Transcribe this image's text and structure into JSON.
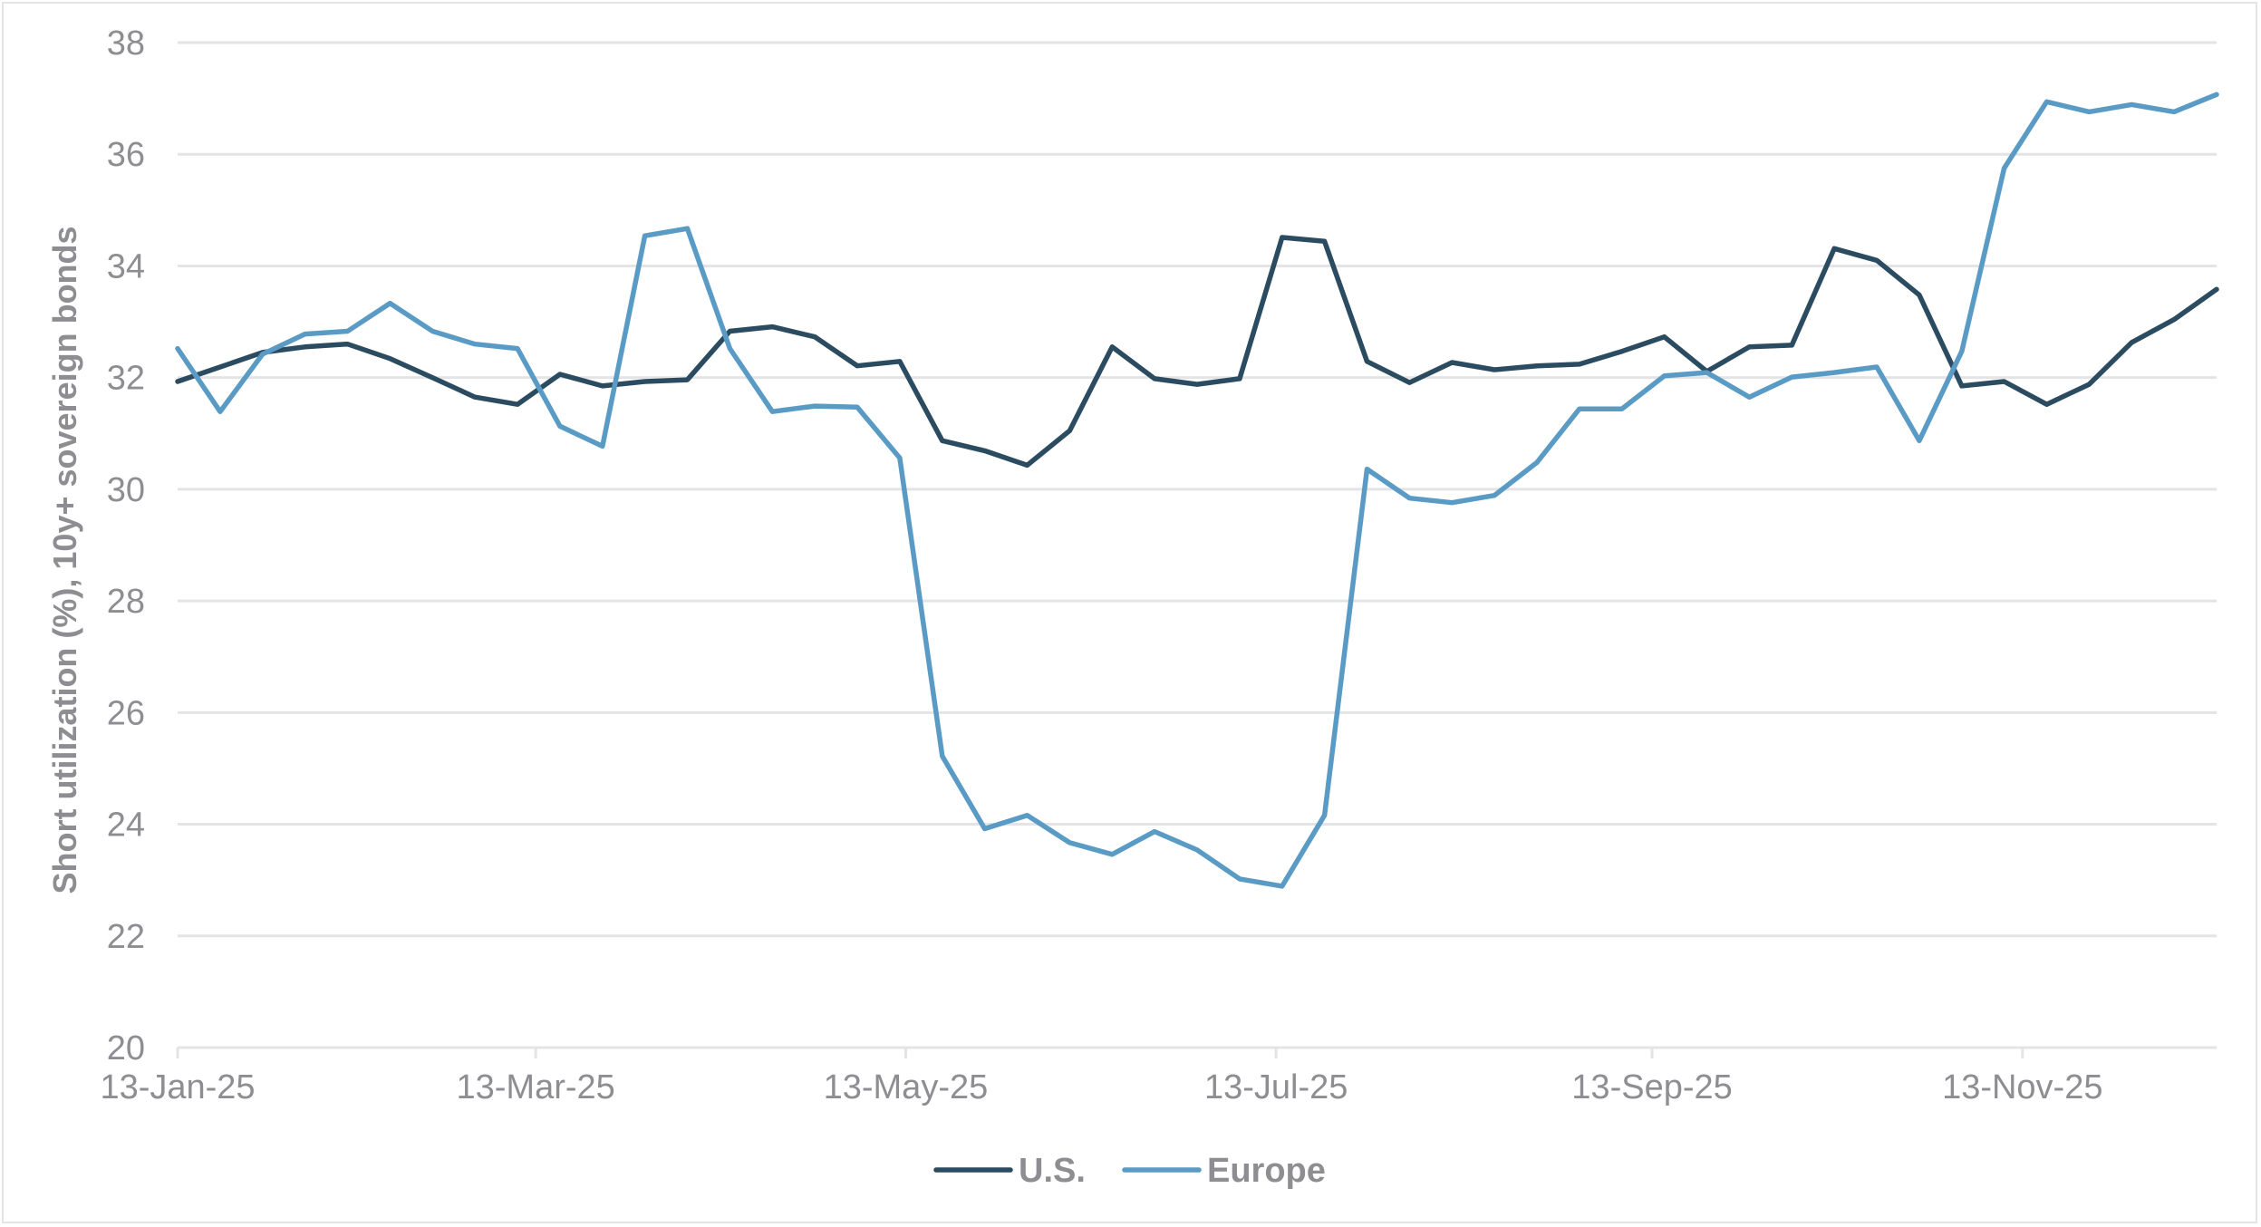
{
  "chart_data": {
    "type": "line",
    "title": "",
    "xlabel": "",
    "ylabel": "Short utilization (%), 10y+ sovereign bonds",
    "ylim": [
      20,
      38
    ],
    "yticks": [
      20,
      22,
      24,
      26,
      28,
      30,
      32,
      34,
      36,
      38
    ],
    "xtick_labels": [
      "13-Jan-25",
      "13-Mar-25",
      "13-May-25",
      "13-Jul-25",
      "13-Sep-25",
      "13-Nov-25"
    ],
    "xtick_indices": [
      0,
      8.43,
      17.14,
      25.86,
      34.71,
      43.43
    ],
    "grid": true,
    "legend_position": "bottom",
    "x_points": 49,
    "x_frequency": "weekly, starting 13-Jan-25",
    "series": [
      {
        "name": "U.S.",
        "color": "#2b4b60",
        "values": [
          31.93,
          32.19,
          32.45,
          32.55,
          32.6,
          32.34,
          32.0,
          31.65,
          31.52,
          32.06,
          31.85,
          31.93,
          31.96,
          32.83,
          32.91,
          32.73,
          32.21,
          32.29,
          30.87,
          30.69,
          30.43,
          31.05,
          32.55,
          31.98,
          31.88,
          31.98,
          34.51,
          34.44,
          32.29,
          31.91,
          32.27,
          32.14,
          32.21,
          32.24,
          32.47,
          32.73,
          32.11,
          32.55,
          32.58,
          34.31,
          34.1,
          33.48,
          31.85,
          31.93,
          31.52,
          31.88,
          32.63,
          33.04,
          33.58
        ]
      },
      {
        "name": "Europe",
        "color": "#5a9bc5",
        "values": [
          32.52,
          31.39,
          32.42,
          32.78,
          32.83,
          33.33,
          32.83,
          32.6,
          32.52,
          31.13,
          30.77,
          34.54,
          34.67,
          32.52,
          31.39,
          31.49,
          31.47,
          30.56,
          25.22,
          23.92,
          24.16,
          23.67,
          23.46,
          23.87,
          23.54,
          23.02,
          22.89,
          24.16,
          30.36,
          29.84,
          29.76,
          29.89,
          30.48,
          31.44,
          31.44,
          32.03,
          32.09,
          31.65,
          32.01,
          32.09,
          32.19,
          30.87,
          32.47,
          35.75,
          36.94,
          36.76,
          36.89,
          36.76,
          37.07
        ]
      }
    ]
  },
  "colors": {
    "grid": "#e4e4e6",
    "text": "#8e8e92",
    "us": "#2b4b60",
    "europe": "#5a9bc5"
  }
}
